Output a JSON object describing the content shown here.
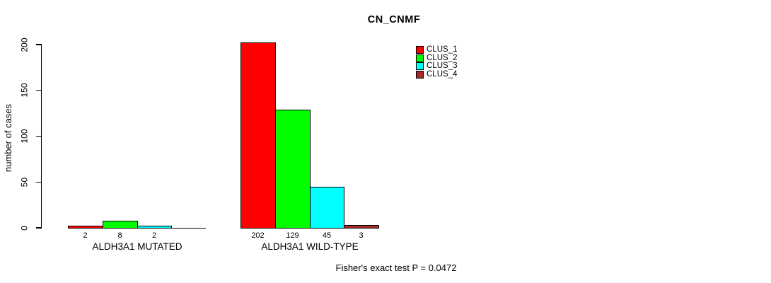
{
  "chart_data": {
    "type": "bar",
    "title": "CN_CNMF",
    "ylabel": "number of cases",
    "xlabel": "",
    "categories": [
      "ALDH3A1 MUTATED",
      "ALDH3A1 WILD-TYPE"
    ],
    "series": [
      {
        "name": "CLUS_1",
        "color": "#FF0000",
        "values": [
          2,
          202
        ]
      },
      {
        "name": "CLUS_2",
        "color": "#00FF00",
        "values": [
          8,
          129
        ]
      },
      {
        "name": "CLUS_3",
        "color": "#00FFFF",
        "values": [
          2,
          45
        ]
      },
      {
        "name": "CLUS_4",
        "color": "#A52A2A",
        "values": [
          0,
          3
        ]
      }
    ],
    "bar_labels": [
      [
        "2",
        "8",
        "2",
        ""
      ],
      [
        "202",
        "129",
        "45",
        "3"
      ]
    ],
    "yticks": [
      0,
      50,
      100,
      150,
      200
    ],
    "ylim": [
      0,
      200
    ],
    "grid": false,
    "legend_position": "top-right",
    "annotation": "Fisher's exact test P = 0.0472"
  }
}
